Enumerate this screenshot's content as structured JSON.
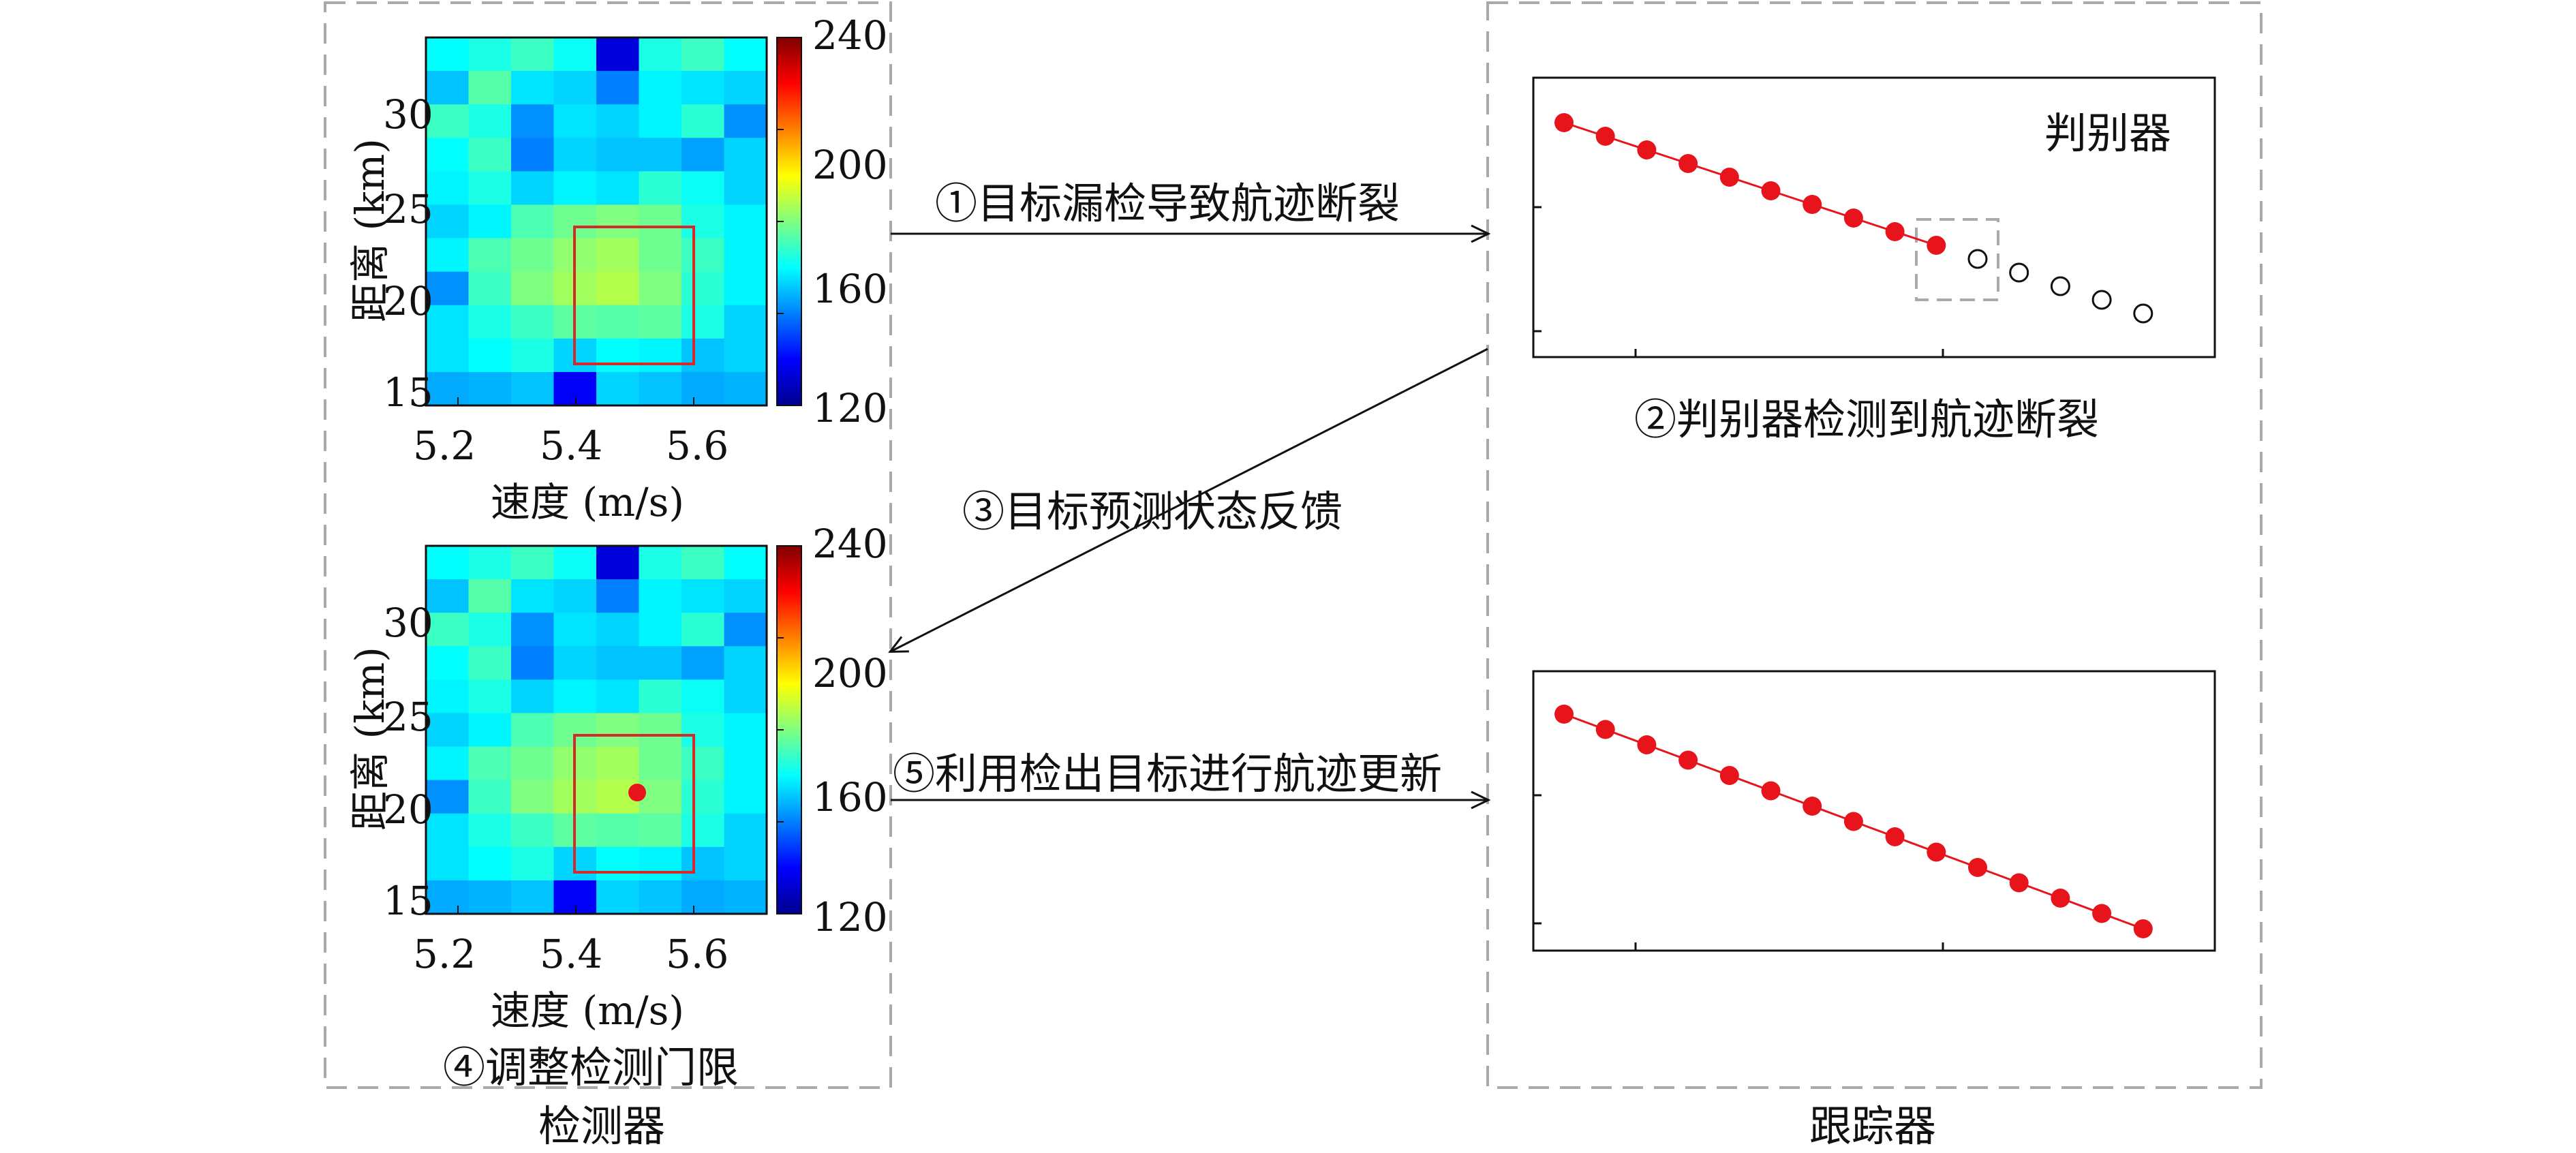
{
  "detector_panel": {
    "caption": "检测器",
    "heatmap_top": {
      "xlabel": "速度 (m/s)",
      "ylabel": "距离 (km)",
      "x_ticks": [
        "5.2",
        "5.4",
        "5.6"
      ],
      "y_ticks": [
        "30",
        "25",
        "20",
        "15"
      ],
      "colorbar_ticks": [
        "240",
        "200",
        "160",
        "120"
      ]
    },
    "heatmap_bottom": {
      "xlabel": "速度 (m/s)",
      "ylabel": "距离 (km)",
      "x_ticks": [
        "5.2",
        "5.4",
        "5.6"
      ],
      "y_ticks": [
        "30",
        "25",
        "20",
        "15"
      ],
      "colorbar_ticks": [
        "240",
        "200",
        "160",
        "120"
      ],
      "caption": "④调整检测门限"
    }
  },
  "tracker_panel": {
    "caption": "跟踪器",
    "plot_top": {
      "legend": "判别器",
      "caption": "②判别器检测到航迹断裂"
    }
  },
  "arrows": {
    "a1": "①目标漏检导致航迹断裂",
    "a3": "③目标预测状态反馈",
    "a5": "⑤利用检出目标进行航迹更新"
  },
  "colors": {
    "track": "#e8141c",
    "dashed_border": "#a9a9a9",
    "roi_box": "#d42a2a",
    "colormap": [
      "#00008f",
      "#0000ff",
      "#0080ff",
      "#00ffff",
      "#80ff80",
      "#ffff00",
      "#ff8000",
      "#ff0000",
      "#800000"
    ]
  },
  "chart_data": [
    {
      "type": "heatmap",
      "xlabel": "速度 (m/s)",
      "ylabel": "距离 (km)",
      "xlim": [
        5.1,
        5.7
      ],
      "ylim": [
        14,
        34
      ],
      "clim": [
        120,
        240
      ],
      "rows": [
        [
          165,
          168,
          172,
          166,
          130,
          168,
          172,
          165
        ],
        [
          158,
          175,
          162,
          160,
          150,
          164,
          162,
          160
        ],
        [
          172,
          168,
          152,
          162,
          160,
          164,
          170,
          152
        ],
        [
          165,
          172,
          150,
          160,
          158,
          158,
          154,
          160
        ],
        [
          164,
          168,
          160,
          164,
          162,
          170,
          166,
          160
        ],
        [
          160,
          164,
          174,
          178,
          180,
          178,
          168,
          164
        ],
        [
          164,
          174,
          178,
          182,
          184,
          178,
          172,
          164
        ],
        [
          152,
          172,
          180,
          184,
          186,
          180,
          170,
          164
        ],
        [
          162,
          168,
          172,
          176,
          175,
          176,
          168,
          160
        ],
        [
          162,
          165,
          168,
          160,
          165,
          164,
          158,
          160
        ],
        [
          155,
          156,
          158,
          134,
          160,
          158,
          155,
          156
        ]
      ],
      "roi": {
        "x": [
          5.41,
          5.59
        ],
        "y": [
          16.3,
          23.8
        ]
      }
    },
    {
      "type": "heatmap",
      "xlabel": "速度 (m/s)",
      "ylabel": "距离 (km)",
      "xlim": [
        5.1,
        5.7
      ],
      "ylim": [
        14,
        34
      ],
      "clim": [
        120,
        240
      ],
      "rows": "same as first heatmap",
      "roi": {
        "x": [
          5.41,
          5.59
        ],
        "y": [
          16.3,
          23.8
        ]
      },
      "detection_point": {
        "x": 5.5,
        "y": 20.8
      }
    },
    {
      "type": "line",
      "title": "",
      "legend": [
        "判别器"
      ],
      "series_detected": {
        "x": [
          1,
          2,
          3,
          4,
          5,
          6,
          7,
          8,
          9,
          10
        ],
        "y": [
          10.0,
          9.5,
          9.0,
          8.5,
          8.0,
          7.5,
          7.0,
          6.5,
          6.0,
          5.5
        ]
      },
      "series_missed": {
        "x": [
          11,
          12,
          13,
          14,
          15
        ],
        "y": [
          5.0,
          4.5,
          4.0,
          3.5,
          3.0
        ]
      }
    },
    {
      "type": "line",
      "series": {
        "x": [
          1,
          2,
          3,
          4,
          5,
          6,
          7,
          8,
          9,
          10,
          11,
          12,
          13,
          14,
          15
        ],
        "y": [
          10.0,
          9.5,
          9.0,
          8.5,
          8.0,
          7.5,
          7.0,
          6.5,
          6.0,
          5.5,
          5.0,
          4.5,
          4.0,
          3.5,
          3.0
        ]
      }
    }
  ]
}
